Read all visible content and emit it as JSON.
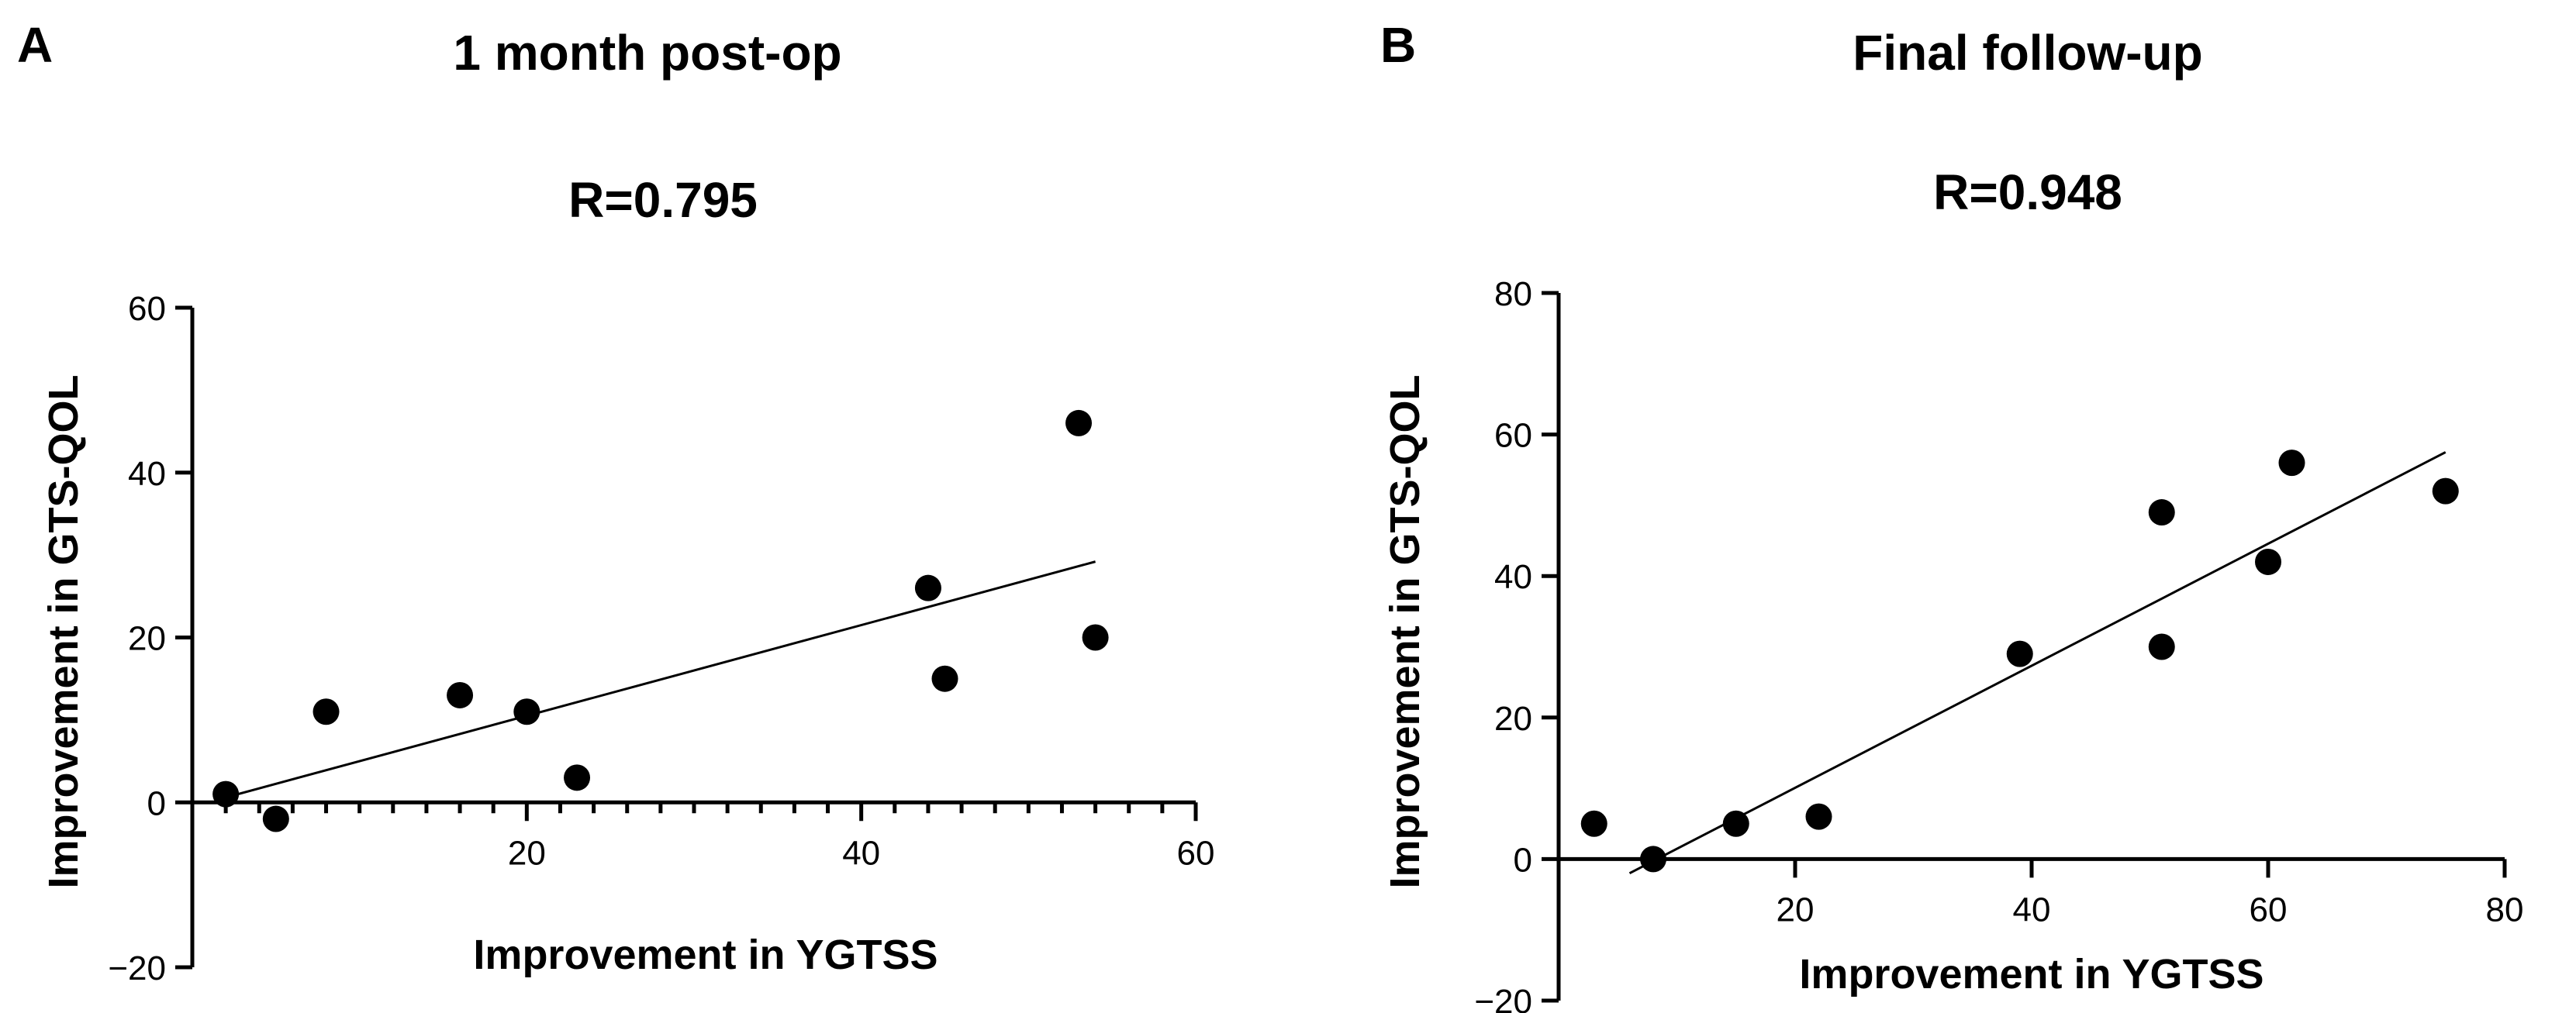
{
  "chart_data": [
    {
      "type": "scatter",
      "panel": "A",
      "title": "1 month post-op",
      "subtitle": "R=0.795",
      "xlabel": "Improvement in YGTSS",
      "ylabel": "Improvement in GTS-QOL",
      "xlim": [
        0,
        60
      ],
      "ylim": [
        -20,
        60
      ],
      "xticks": [
        20,
        40,
        60
      ],
      "xtick_labels": [
        "20",
        "40",
        "60"
      ],
      "yticks": [
        -20,
        0,
        20,
        40,
        60
      ],
      "ytick_labels": [
        "−20",
        "0",
        "20",
        "40",
        "60"
      ],
      "x_minor_step": 2,
      "points": [
        {
          "x": 2,
          "y": 1
        },
        {
          "x": 5,
          "y": -2
        },
        {
          "x": 8,
          "y": 11
        },
        {
          "x": 16,
          "y": 13
        },
        {
          "x": 20,
          "y": 11
        },
        {
          "x": 23,
          "y": 3
        },
        {
          "x": 44,
          "y": 26
        },
        {
          "x": 45,
          "y": 15
        },
        {
          "x": 53,
          "y": 46
        },
        {
          "x": 54,
          "y": 20
        }
      ],
      "fit_line": {
        "x": [
          2,
          54
        ],
        "y": [
          0.6,
          29.2
        ]
      },
      "grid": false
    },
    {
      "type": "scatter",
      "panel": "B",
      "title": "Final follow-up",
      "subtitle": "R=0.948",
      "xlabel": "Improvement in YGTSS",
      "ylabel": "Improvement in GTS-QOL",
      "xlim": [
        0,
        80
      ],
      "ylim": [
        -20,
        80
      ],
      "xticks": [
        20,
        40,
        60,
        80
      ],
      "xtick_labels": [
        "20",
        "40",
        "60",
        "80"
      ],
      "yticks": [
        -20,
        0,
        20,
        40,
        60,
        80
      ],
      "ytick_labels": [
        "−20",
        "0",
        "20",
        "40",
        "60",
        "80"
      ],
      "x_minor_step": 0,
      "points": [
        {
          "x": 3,
          "y": 5
        },
        {
          "x": 8,
          "y": 0
        },
        {
          "x": 15,
          "y": 5
        },
        {
          "x": 22,
          "y": 6
        },
        {
          "x": 39,
          "y": 29
        },
        {
          "x": 51,
          "y": 49
        },
        {
          "x": 51,
          "y": 30
        },
        {
          "x": 60,
          "y": 42
        },
        {
          "x": 62,
          "y": 56
        },
        {
          "x": 75,
          "y": 52
        }
      ],
      "fit_line": {
        "x": [
          6,
          75
        ],
        "y": [
          -2,
          57.5
        ]
      },
      "grid": false
    }
  ]
}
